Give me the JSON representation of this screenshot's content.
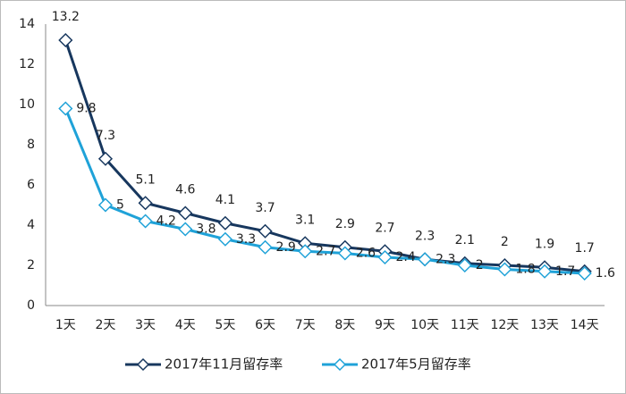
{
  "chart_data": {
    "type": "line",
    "categories": [
      "1天",
      "2天",
      "3天",
      "4天",
      "5天",
      "6天",
      "7天",
      "8天",
      "9天",
      "10天",
      "11天",
      "12天",
      "13天",
      "14天"
    ],
    "series": [
      {
        "name": "2017年11月留存率",
        "color": "#17375e",
        "label_position": "top",
        "values": [
          13.2,
          7.3,
          5.1,
          4.6,
          4.1,
          3.7,
          3.1,
          2.9,
          2.7,
          2.3,
          2.1,
          2,
          1.9,
          1.7
        ]
      },
      {
        "name": "2017年5月留存率",
        "color": "#1fa2d8",
        "label_position": "right",
        "values": [
          9.8,
          5,
          4.2,
          3.8,
          3.3,
          2.9,
          2.7,
          2.6,
          2.4,
          2.3,
          2,
          1.8,
          1.7,
          1.6
        ]
      }
    ],
    "ylim": [
      0,
      14
    ],
    "yticks": [
      0,
      2,
      4,
      6,
      8,
      10,
      12,
      14
    ],
    "grid": false,
    "legend": "bottom"
  }
}
